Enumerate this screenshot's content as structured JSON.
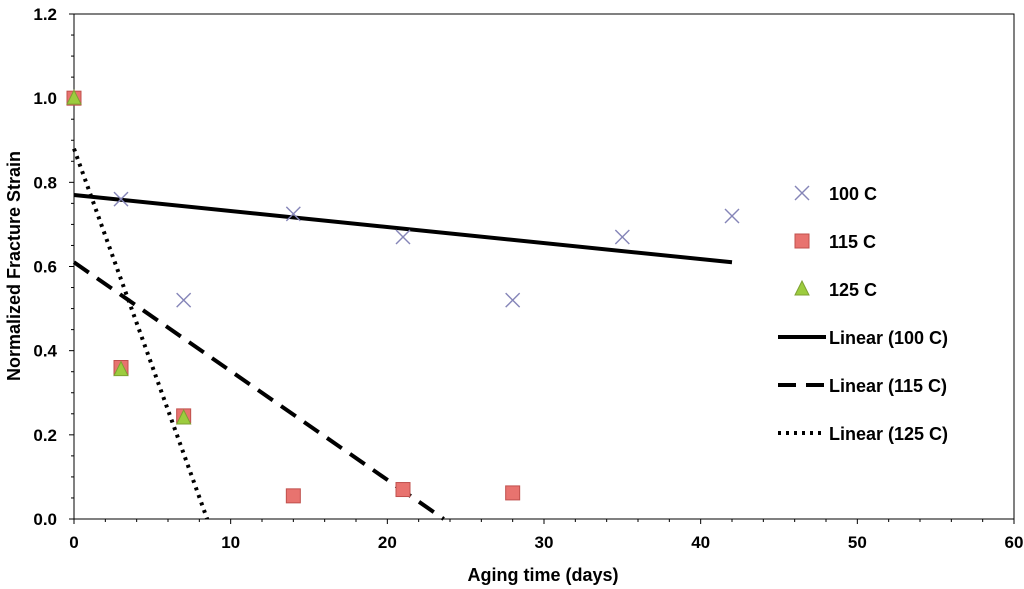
{
  "chart_data": {
    "type": "scatter",
    "title": "",
    "xlabel": "Aging time (days)",
    "ylabel": "Normalized Fracture Strain",
    "xlim": [
      0,
      60
    ],
    "ylim": [
      0,
      1.2
    ],
    "x_ticks": [
      0,
      10,
      20,
      30,
      40,
      50,
      60
    ],
    "y_ticks": [
      0.0,
      0.2,
      0.4,
      0.6,
      0.8,
      1.0,
      1.2
    ],
    "x_tick_labels": [
      "0",
      "10",
      "20",
      "30",
      "40",
      "50",
      "60"
    ],
    "y_tick_labels": [
      "0.0",
      "0.2",
      "0.4",
      "0.6",
      "0.8",
      "1.0",
      "1.2"
    ],
    "grid": false,
    "legend_position": "right",
    "series": [
      {
        "name": "100 C",
        "marker": "x",
        "color": "#8585b8",
        "x": [
          3,
          7,
          14,
          21,
          28,
          35,
          42
        ],
        "y": [
          0.76,
          0.52,
          0.725,
          0.67,
          0.52,
          0.67,
          0.72
        ]
      },
      {
        "name": "115 C",
        "marker": "square",
        "color": "#e8736f",
        "x": [
          0,
          3,
          7,
          14,
          21,
          28
        ],
        "y": [
          1.0,
          0.36,
          0.245,
          0.055,
          0.07,
          0.062
        ]
      },
      {
        "name": "125 C",
        "marker": "triangle",
        "color": "#9ccc3e",
        "x": [
          0,
          3,
          7
        ],
        "y": [
          1.0,
          0.355,
          0.24
        ]
      }
    ],
    "trendlines": [
      {
        "name": "Linear (100 C)",
        "style": "solid",
        "x": [
          0,
          42
        ],
        "y": [
          0.77,
          0.61
        ]
      },
      {
        "name": "Linear (115 C)",
        "style": "dashed",
        "x": [
          0,
          23.6
        ],
        "y": [
          0.61,
          0.0
        ]
      },
      {
        "name": "Linear (125 C)",
        "style": "dotted",
        "x": [
          0,
          8.5
        ],
        "y": [
          0.88,
          0.0
        ]
      }
    ]
  }
}
